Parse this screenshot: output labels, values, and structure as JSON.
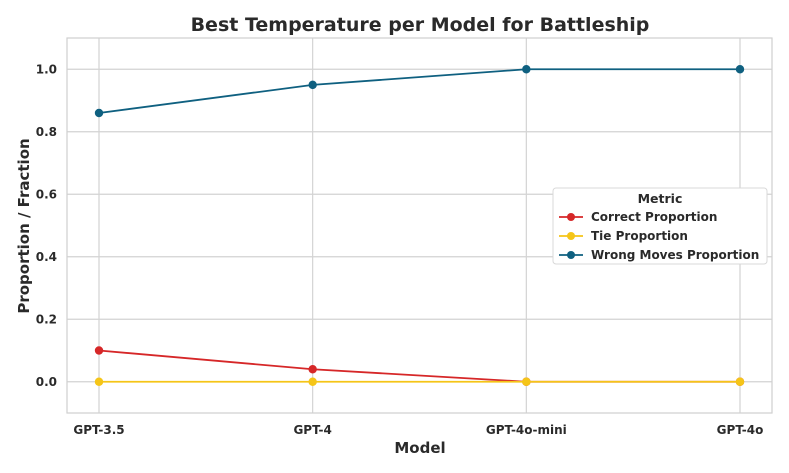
{
  "chart_data": {
    "type": "line",
    "title": "Best Temperature per Model for Battleship",
    "xlabel": "Model",
    "ylabel": "Proportion / Fraction",
    "categories": [
      "GPT-3.5",
      "GPT-4",
      "GPT-4o-mini",
      "GPT-4o"
    ],
    "ylim": [
      -0.1,
      1.1
    ],
    "yticks": [
      "0.0",
      "0.2",
      "0.4",
      "0.6",
      "0.8",
      "1.0"
    ],
    "grid": true,
    "legend": {
      "title": "Metric",
      "placement": "center-right"
    },
    "series": [
      {
        "name": "Correct Proportion",
        "color": "#d62728",
        "values": [
          0.1,
          0.04,
          0.0,
          0.0
        ]
      },
      {
        "name": "Tie Proportion",
        "color": "#f5c518",
        "values": [
          0.0,
          0.0,
          0.0,
          0.0
        ]
      },
      {
        "name": "Wrong Moves Proportion",
        "color": "#0f6080",
        "values": [
          0.86,
          0.95,
          1.0,
          1.0
        ]
      }
    ]
  }
}
